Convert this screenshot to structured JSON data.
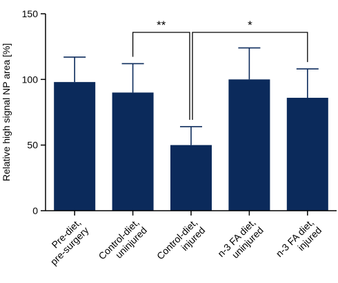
{
  "chart_data": {
    "type": "bar",
    "title": "",
    "xlabel": "",
    "ylabel": "Relative high signal NP area [%]",
    "ylim": [
      0,
      150
    ],
    "yticks": [
      0,
      50,
      100,
      150
    ],
    "grid": false,
    "categories": [
      [
        "Pre-diet,",
        "pre-surgery"
      ],
      [
        "Control-diet,",
        "uninjured"
      ],
      [
        "Control-diet,",
        "injured"
      ],
      [
        "n-3 FA diet,",
        "uninjured"
      ],
      [
        "n-3 FA diet,",
        "injured"
      ]
    ],
    "values": [
      98,
      90,
      50,
      100,
      86
    ],
    "error_upper": [
      117,
      112,
      64,
      124,
      108
    ],
    "significance": [
      {
        "label": "**",
        "from": 1,
        "to": 2
      },
      {
        "label": "*",
        "from": 2,
        "to": 4
      }
    ],
    "colors": {
      "bar": "#0b2a5b",
      "error": "#0b2a5b",
      "axis": "#000000",
      "bracket": "#000000"
    }
  }
}
